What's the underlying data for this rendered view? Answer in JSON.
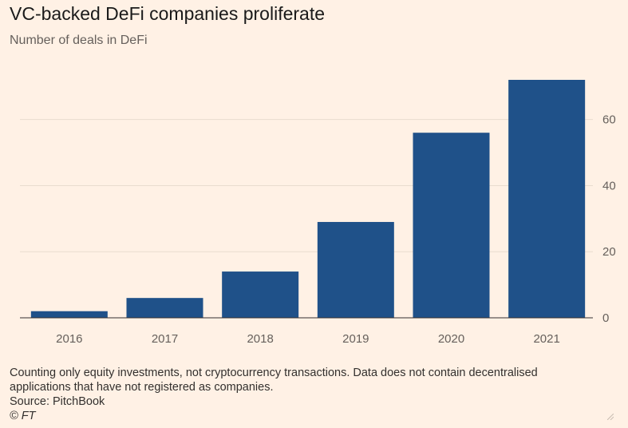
{
  "header": {
    "title": "VC-backed DeFi companies proliferate",
    "subtitle": "Number of deals in DeFi"
  },
  "footer": {
    "note": "Counting only equity investments, not cryptocurrency transactions. Data does not contain decentralised applications that have not registered as companies.",
    "source": "Source: PitchBook",
    "copyright": "© FT"
  },
  "colors": {
    "background": "#fff1e5",
    "bar": "#1f5189",
    "gridline": "#e9dccf",
    "axis_text": "#66605c"
  },
  "chart_data": {
    "type": "bar",
    "title": "VC-backed DeFi companies proliferate",
    "subtitle": "Number of deals in DeFi",
    "categories": [
      "2016",
      "2017",
      "2018",
      "2019",
      "2020",
      "2021"
    ],
    "values": [
      2,
      6,
      14,
      29,
      56,
      72
    ],
    "xlabel": "",
    "ylabel": "",
    "ylim": [
      0,
      72
    ],
    "yticks": [
      0,
      20,
      40,
      60
    ],
    "yaxis_side": "right",
    "grid": true,
    "legend": "none"
  },
  "icons": {
    "resize": "resize-handle-icon"
  }
}
